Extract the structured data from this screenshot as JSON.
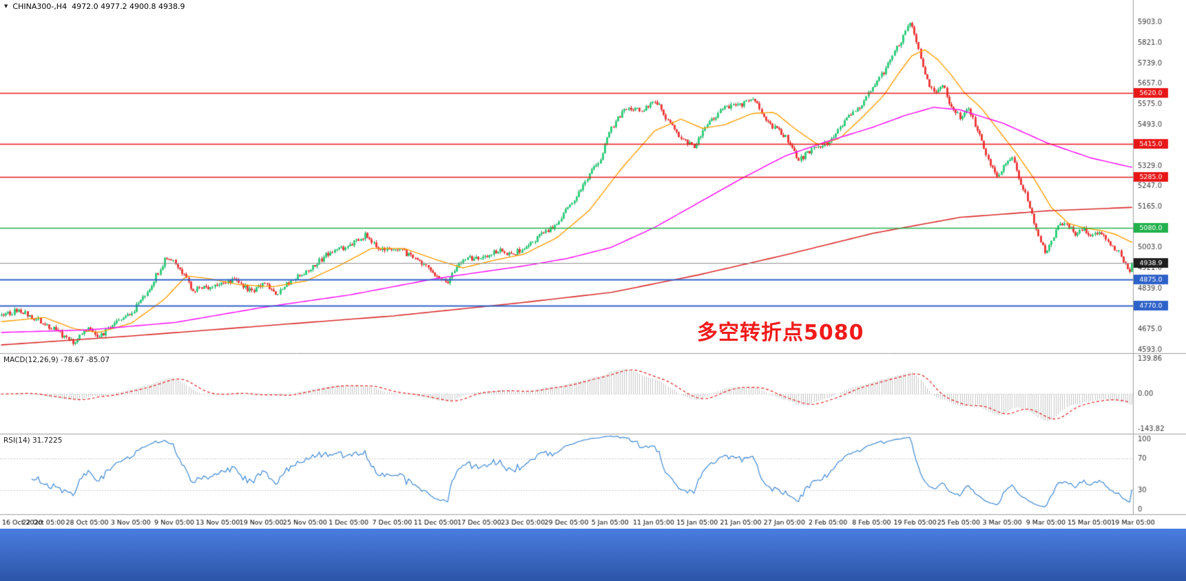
{
  "header": {
    "symbol_timeframe": "CHINA300-,H4",
    "ohlc": "4972.0 4977.2 4900.8 4938.9"
  },
  "chart_data": {
    "type": "candlestick",
    "symbol": "CHINA300-",
    "timeframe": "H4",
    "ohlc_current": {
      "open": 4972.0,
      "high": 4977.2,
      "low": 4900.8,
      "close": 4938.9
    },
    "current_price": 4938.9,
    "y_axis": {
      "min": 4582,
      "max": 5947,
      "ticks": [
        5903.0,
        5821.0,
        5739.0,
        5657.0,
        5575.0,
        5493.0,
        5411.0,
        5329.0,
        5247.0,
        5165.0,
        5083.0,
        5003.0,
        4921.0,
        4839.0,
        4757.0,
        4675.0,
        4593.0
      ]
    },
    "x_labels": [
      "16 Oct 2020",
      "22 Oct 05:00",
      "28 Oct 05:00",
      "3 Nov 05:00",
      "9 Nov 05:00",
      "13 Nov 05:00",
      "19 Nov 05:00",
      "25 Nov 05:00",
      "1 Dec 05:00",
      "7 Dec 05:00",
      "11 Dec 05:00",
      "17 Dec 05:00",
      "23 Dec 05:00",
      "29 Dec 05:00",
      "5 Jan 05:00",
      "11 Jan 05:00",
      "15 Jan 05:00",
      "21 Jan 05:00",
      "27 Jan 05:00",
      "2 Feb 05:00",
      "8 Feb 05:00",
      "19 Feb 05:00",
      "25 Feb 05:00",
      "3 Mar 05:00",
      "9 Mar 05:00",
      "15 Mar 05:00",
      "19 Mar 05:00"
    ],
    "candle_count": 520,
    "noise": 22,
    "wick": 9,
    "close_keyframes": [
      [
        0,
        4730
      ],
      [
        8,
        4752
      ],
      [
        20,
        4700
      ],
      [
        28,
        4650
      ],
      [
        33,
        4618
      ],
      [
        40,
        4682
      ],
      [
        45,
        4644
      ],
      [
        52,
        4700
      ],
      [
        60,
        4742
      ],
      [
        68,
        4840
      ],
      [
        75,
        4952
      ],
      [
        80,
        4940
      ],
      [
        88,
        4830
      ],
      [
        100,
        4852
      ],
      [
        108,
        4872
      ],
      [
        115,
        4820
      ],
      [
        120,
        4862
      ],
      [
        126,
        4812
      ],
      [
        133,
        4872
      ],
      [
        140,
        4902
      ],
      [
        150,
        4978
      ],
      [
        160,
        5010
      ],
      [
        167,
        5052
      ],
      [
        175,
        4990
      ],
      [
        180,
        5002
      ],
      [
        190,
        4962
      ],
      [
        200,
        4892
      ],
      [
        205,
        4868
      ],
      [
        212,
        4958
      ],
      [
        220,
        4962
      ],
      [
        228,
        4992
      ],
      [
        235,
        4972
      ],
      [
        240,
        5002
      ],
      [
        248,
        5052
      ],
      [
        255,
        5092
      ],
      [
        260,
        5162
      ],
      [
        268,
        5262
      ],
      [
        275,
        5362
      ],
      [
        280,
        5482
      ],
      [
        287,
        5562
      ],
      [
        295,
        5552
      ],
      [
        300,
        5592
      ],
      [
        305,
        5522
      ],
      [
        312,
        5432
      ],
      [
        318,
        5402
      ],
      [
        325,
        5502
      ],
      [
        332,
        5562
      ],
      [
        340,
        5572
      ],
      [
        345,
        5602
      ],
      [
        352,
        5502
      ],
      [
        360,
        5442
      ],
      [
        366,
        5352
      ],
      [
        372,
        5392
      ],
      [
        380,
        5422
      ],
      [
        388,
        5512
      ],
      [
        395,
        5572
      ],
      [
        400,
        5642
      ],
      [
        405,
        5702
      ],
      [
        410,
        5782
      ],
      [
        415,
        5862
      ],
      [
        417,
        5902
      ],
      [
        420,
        5822
      ],
      [
        424,
        5682
      ],
      [
        428,
        5622
      ],
      [
        432,
        5652
      ],
      [
        436,
        5562
      ],
      [
        440,
        5522
      ],
      [
        444,
        5562
      ],
      [
        448,
        5472
      ],
      [
        453,
        5352
      ],
      [
        458,
        5282
      ],
      [
        460,
        5322
      ],
      [
        464,
        5362
      ],
      [
        468,
        5262
      ],
      [
        472,
        5162
      ],
      [
        476,
        5052
      ],
      [
        479,
        4982
      ],
      [
        481,
        5012
      ],
      [
        485,
        5082
      ],
      [
        489,
        5102
      ],
      [
        493,
        5052
      ],
      [
        497,
        5082
      ],
      [
        500,
        5042
      ],
      [
        504,
        5062
      ],
      [
        508,
        5022
      ],
      [
        512,
        4992
      ],
      [
        515,
        4952
      ],
      [
        518,
        4912
      ],
      [
        519,
        4939
      ]
    ],
    "ma_lines": [
      {
        "name": "ma-fast-orange",
        "color": "#ff9d00",
        "width": 1.4,
        "points": [
          [
            0,
            4705
          ],
          [
            20,
            4722
          ],
          [
            33,
            4678
          ],
          [
            45,
            4662
          ],
          [
            60,
            4700
          ],
          [
            75,
            4795
          ],
          [
            85,
            4888
          ],
          [
            95,
            4878
          ],
          [
            110,
            4852
          ],
          [
            125,
            4845
          ],
          [
            140,
            4868
          ],
          [
            155,
            4928
          ],
          [
            170,
            4998
          ],
          [
            185,
            4998
          ],
          [
            200,
            4952
          ],
          [
            212,
            4920
          ],
          [
            225,
            4948
          ],
          [
            240,
            4975
          ],
          [
            255,
            5040
          ],
          [
            270,
            5150
          ],
          [
            285,
            5320
          ],
          [
            300,
            5468
          ],
          [
            312,
            5515
          ],
          [
            322,
            5478
          ],
          [
            332,
            5492
          ],
          [
            345,
            5538
          ],
          [
            355,
            5542
          ],
          [
            365,
            5472
          ],
          [
            375,
            5412
          ],
          [
            385,
            5438
          ],
          [
            395,
            5520
          ],
          [
            405,
            5608
          ],
          [
            412,
            5698
          ],
          [
            418,
            5768
          ],
          [
            424,
            5792
          ],
          [
            430,
            5752
          ],
          [
            436,
            5692
          ],
          [
            442,
            5622
          ],
          [
            450,
            5558
          ],
          [
            458,
            5468
          ],
          [
            466,
            5378
          ],
          [
            474,
            5278
          ],
          [
            482,
            5162
          ],
          [
            490,
            5098
          ],
          [
            498,
            5078
          ],
          [
            506,
            5068
          ],
          [
            512,
            5052
          ],
          [
            519,
            5022
          ]
        ]
      },
      {
        "name": "ma-mid-magenta",
        "color": "#ff00ff",
        "width": 1.4,
        "points": [
          [
            0,
            4662
          ],
          [
            40,
            4672
          ],
          [
            80,
            4702
          ],
          [
            120,
            4762
          ],
          [
            160,
            4812
          ],
          [
            200,
            4878
          ],
          [
            240,
            4928
          ],
          [
            260,
            4958
          ],
          [
            280,
            5002
          ],
          [
            300,
            5082
          ],
          [
            320,
            5180
          ],
          [
            340,
            5278
          ],
          [
            360,
            5368
          ],
          [
            380,
            5428
          ],
          [
            400,
            5482
          ],
          [
            415,
            5530
          ],
          [
            428,
            5562
          ],
          [
            440,
            5552
          ],
          [
            460,
            5498
          ],
          [
            480,
            5420
          ],
          [
            500,
            5360
          ],
          [
            519,
            5322
          ]
        ]
      },
      {
        "name": "ma-slow-red",
        "color": "#d92b2b",
        "width": 1.6,
        "points": [
          [
            0,
            4612
          ],
          [
            60,
            4648
          ],
          [
            120,
            4688
          ],
          [
            180,
            4728
          ],
          [
            240,
            4782
          ],
          [
            280,
            4822
          ],
          [
            320,
            4892
          ],
          [
            360,
            4972
          ],
          [
            400,
            5058
          ],
          [
            440,
            5122
          ],
          [
            480,
            5148
          ],
          [
            519,
            5162
          ]
        ]
      }
    ],
    "hlines": [
      {
        "value": 5620.0,
        "label": "5620.0",
        "color": "#e81717",
        "width": 1.4
      },
      {
        "value": 5415.0,
        "label": "5415.0",
        "color": "#e81717",
        "width": 1.4
      },
      {
        "value": 5285.0,
        "label": "5285.0",
        "color": "#e81717",
        "width": 1.4
      },
      {
        "value": 5080.0,
        "label": "5080.0",
        "color": "#22b14c",
        "width": 1.6
      },
      {
        "value": 4875.0,
        "label": "4875.0",
        "color": "#2e62c9",
        "width": 2
      },
      {
        "value": 4770.0,
        "label": "4770.0",
        "color": "#2e62c9",
        "width": 2
      }
    ],
    "price_marker": {
      "value": 4938.9,
      "label": "4938.9",
      "line_color": "#8c8c8c",
      "box_color": "#1f1f1f"
    },
    "candle_up": {
      "fill": "#2fcf7c",
      "border": "#0d9d54"
    },
    "candle_down": {
      "fill": "#ef3b3b",
      "border": "#cf1d1d"
    },
    "macd": {
      "label": "MACD(12,26,9) -78.67 -85.07",
      "fast": 12,
      "slow": 26,
      "signal": 9,
      "value": -78.67,
      "signal_value": -85.07,
      "ticks": [
        139.86,
        0.0,
        -143.82
      ],
      "range": [
        -155,
        159
      ],
      "hist_color": "#c4c4c4",
      "signal_color": "#e02020"
    },
    "rsi": {
      "label": "RSI(14) 31.7225",
      "period": 14,
      "value": 31.7225,
      "ticks": [
        100,
        70,
        30,
        0
      ],
      "levels": [
        70,
        30
      ],
      "line_color": "#4a8fd4"
    },
    "annotation": {
      "text": "多空转折点5080",
      "color": "#f21a1a"
    }
  }
}
